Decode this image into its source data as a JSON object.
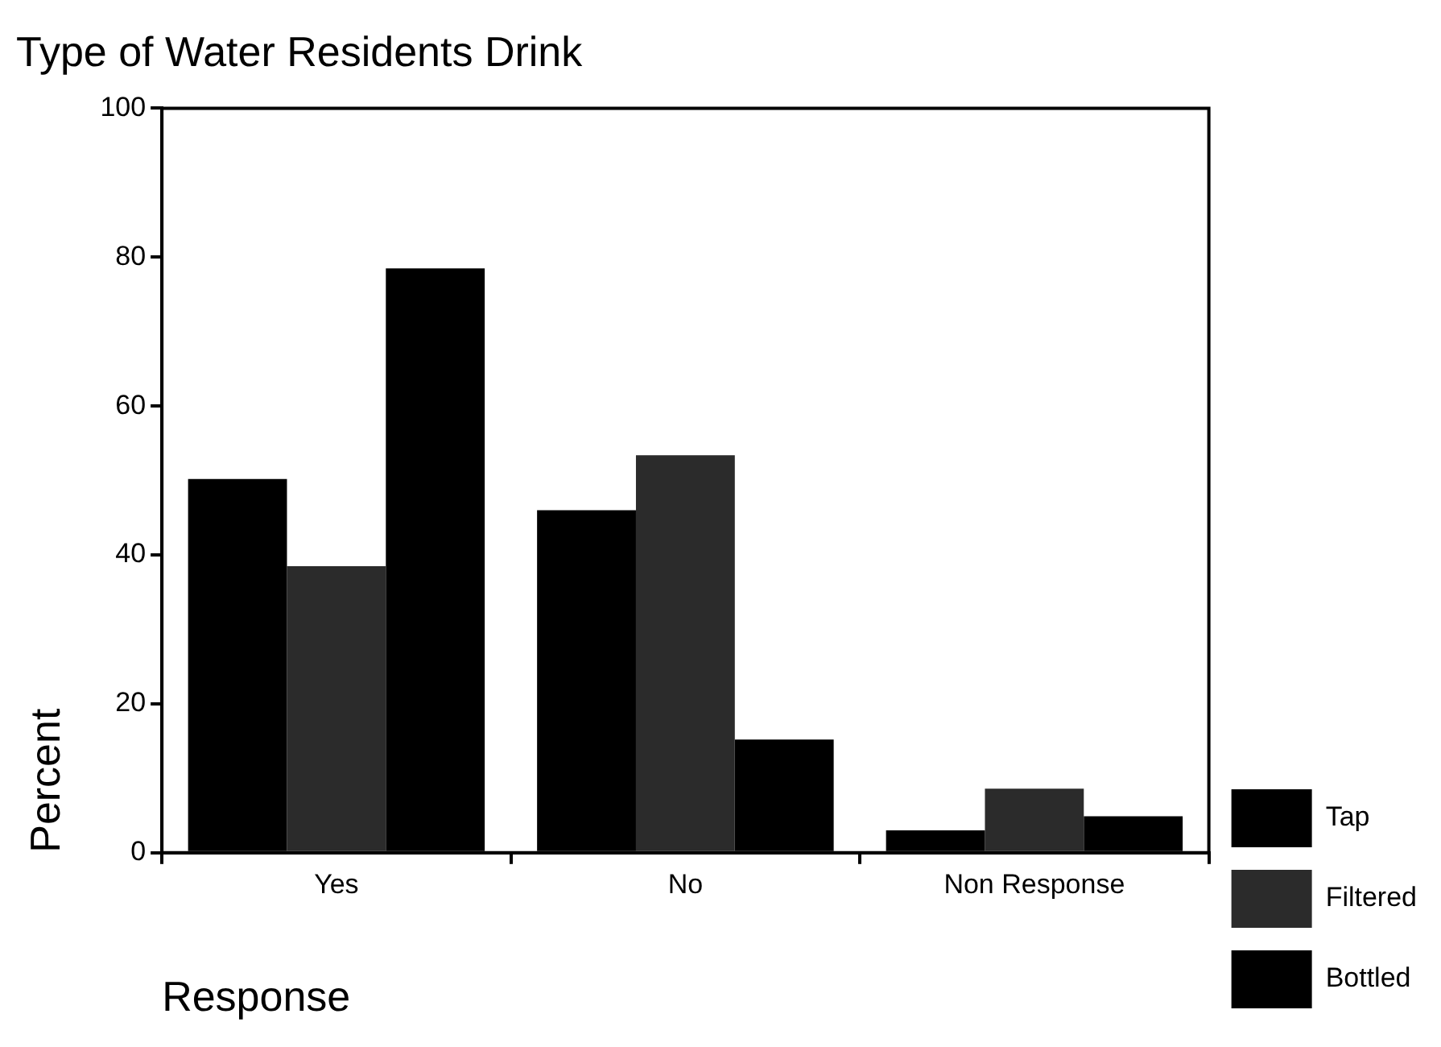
{
  "chart_data": {
    "type": "bar",
    "title": "Type of Water Residents Drink",
    "xlabel": "Response",
    "ylabel": "Percent",
    "categories": [
      "Yes",
      "No",
      "Non Response"
    ],
    "series": [
      {
        "name": "Tap",
        "color": "#000000",
        "values": [
          50.2,
          46.0,
          3.0
        ]
      },
      {
        "name": "Filtered",
        "color": "#2b2b2b",
        "values": [
          38.5,
          53.4,
          8.6
        ]
      },
      {
        "name": "Bottled",
        "color": "#000000",
        "values": [
          78.5,
          15.2,
          4.9
        ]
      }
    ],
    "ylim": [
      0,
      100
    ],
    "yticks": [
      0,
      20,
      40,
      60,
      80,
      100
    ],
    "grid": false,
    "legend": "right"
  }
}
